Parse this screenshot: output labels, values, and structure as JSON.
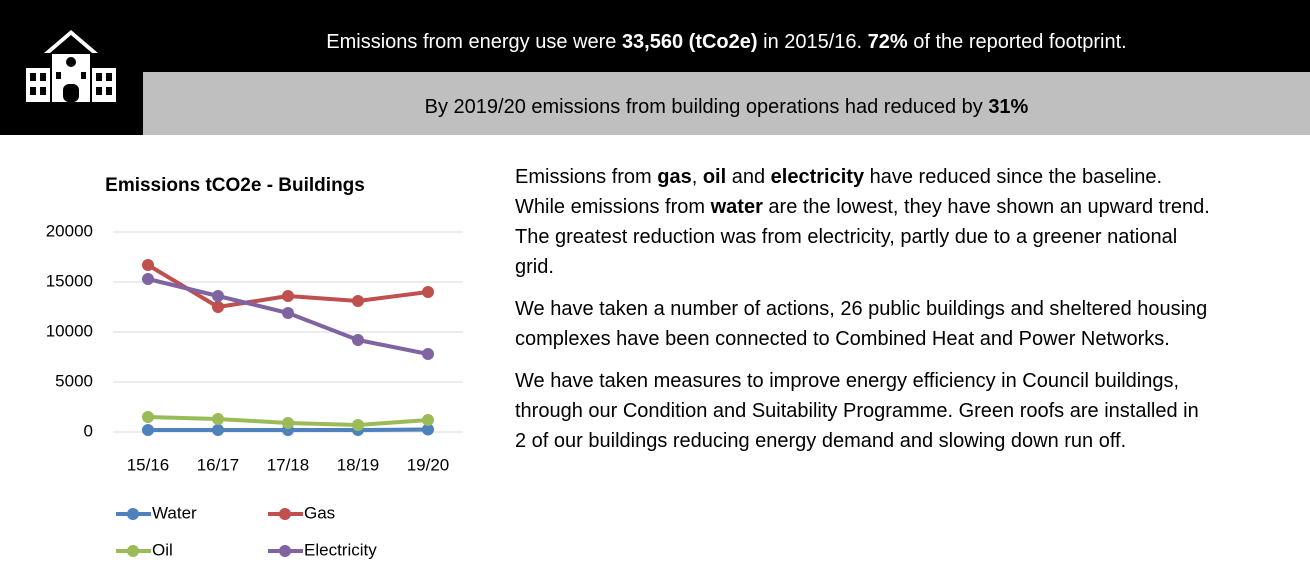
{
  "header": {
    "line1": [
      {
        "text": "Emissions from energy use were ",
        "bold": false
      },
      {
        "text": "33,560 (tCo2e)",
        "bold": true
      },
      {
        "text": " in 2015/16. ",
        "bold": false
      },
      {
        "text": "72%",
        "bold": true
      },
      {
        "text": " of the reported footprint.",
        "bold": false
      }
    ],
    "line2": [
      {
        "text": "By 2019/20 emissions from building operations had reduced by ",
        "bold": false
      },
      {
        "text": "31%",
        "bold": true
      }
    ]
  },
  "chart_data": {
    "type": "line",
    "title": "Emissions tCO2e - Buildings",
    "categories": [
      "15/16",
      "16/17",
      "17/18",
      "18/19",
      "19/20"
    ],
    "series": [
      {
        "name": "Water",
        "color": "#4f81bd",
        "values": [
          200,
          200,
          200,
          200,
          250
        ]
      },
      {
        "name": "Gas",
        "color": "#c0504d",
        "values": [
          16700,
          12500,
          13600,
          13100,
          14000
        ]
      },
      {
        "name": "Oil",
        "color": "#9bbb59",
        "values": [
          1500,
          1300,
          900,
          700,
          1200
        ]
      },
      {
        "name": "Electricity",
        "color": "#8064a2",
        "values": [
          15300,
          13600,
          11900,
          9200,
          7800
        ]
      }
    ],
    "ylim": [
      0,
      20000
    ],
    "yticks": [
      0,
      5000,
      10000,
      15000,
      20000
    ],
    "grid": true
  },
  "paragraphs": [
    [
      {
        "text": "Emissions from ",
        "bold": false
      },
      {
        "text": "gas",
        "bold": true
      },
      {
        "text": ", ",
        "bold": false
      },
      {
        "text": "oil",
        "bold": true
      },
      {
        "text": " and ",
        "bold": false
      },
      {
        "text": "electricity",
        "bold": true
      },
      {
        "text": " have reduced since the baseline. While emissions from ",
        "bold": false
      },
      {
        "text": "water",
        "bold": true
      },
      {
        "text": " are the lowest, they have shown an upward trend. The greatest reduction was from electricity, partly due to a greener national grid.",
        "bold": false
      }
    ],
    [
      {
        "text": "We have taken a number of actions, 26 public buildings and sheltered housing complexes have been connected to Combined Heat and Power Networks.",
        "bold": false
      }
    ],
    [
      {
        "text": "We have taken measures to improve energy efficiency in Council buildings, through our Condition and Suitability Programme. Green roofs are installed in 2 of our buildings reducing energy demand and slowing down run off.",
        "bold": false
      }
    ]
  ]
}
